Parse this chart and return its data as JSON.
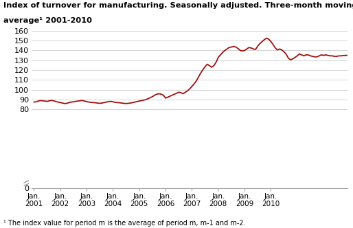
{
  "title_line1": "Index of turnover for manufacturing. Seasonally adjusted. Three-month moving",
  "title_line2": "average¹ 2001-2010",
  "footnote": "¹ The index value for period m is the average of period m, m-1 and m-2.",
  "line_color": "#a01010",
  "background_color": "#ffffff",
  "grid_color": "#cccccc",
  "ylim": [
    0,
    160
  ],
  "yticks": [
    0,
    80,
    90,
    100,
    110,
    120,
    130,
    140,
    150,
    160
  ],
  "xtick_labels": [
    "Jan.\n2001",
    "Jan.\n2002",
    "Jan.\n2003",
    "Jan.\n2004",
    "Jan.\n2005",
    "Jan.\n2006",
    "Jan.\n2007",
    "Jan.\n2008",
    "Jan.\n2009",
    "Jan.\n2010"
  ],
  "values": [
    87.5,
    87.8,
    88.5,
    89.0,
    88.8,
    88.5,
    88.2,
    88.8,
    89.2,
    88.8,
    88.0,
    87.5,
    87.0,
    86.5,
    86.0,
    86.2,
    87.0,
    87.5,
    87.8,
    88.2,
    88.5,
    88.8,
    89.2,
    88.5,
    88.0,
    87.5,
    87.2,
    87.0,
    86.8,
    86.5,
    86.2,
    86.5,
    87.0,
    87.5,
    88.0,
    88.2,
    87.8,
    87.2,
    87.0,
    86.8,
    86.5,
    86.2,
    86.0,
    86.2,
    86.5,
    87.0,
    87.5,
    88.0,
    88.5,
    89.0,
    89.5,
    90.0,
    91.0,
    92.0,
    93.0,
    94.5,
    95.5,
    96.0,
    95.5,
    94.5,
    91.5,
    92.5,
    93.5,
    94.5,
    95.5,
    96.5,
    97.5,
    97.0,
    96.0,
    97.5,
    99.0,
    101.0,
    103.5,
    106.0,
    109.0,
    113.0,
    117.0,
    120.5,
    123.5,
    126.0,
    124.5,
    123.0,
    124.5,
    128.0,
    133.0,
    135.5,
    138.0,
    140.0,
    141.5,
    143.0,
    143.5,
    144.0,
    143.5,
    142.0,
    140.0,
    139.5,
    140.0,
    141.5,
    143.0,
    142.5,
    141.5,
    141.0,
    144.5,
    147.0,
    149.0,
    151.0,
    152.5,
    151.5,
    149.0,
    146.0,
    142.5,
    140.5,
    141.5,
    140.5,
    138.5,
    136.0,
    132.0,
    130.5,
    131.5,
    133.0,
    134.5,
    136.5,
    135.5,
    134.5,
    135.5,
    135.5,
    134.5,
    134.0,
    133.5,
    133.5,
    134.5,
    135.5,
    135.0,
    135.5,
    135.0,
    134.5,
    134.5,
    134.0,
    134.0,
    134.5,
    134.5,
    134.8,
    135.0,
    135.0
  ]
}
